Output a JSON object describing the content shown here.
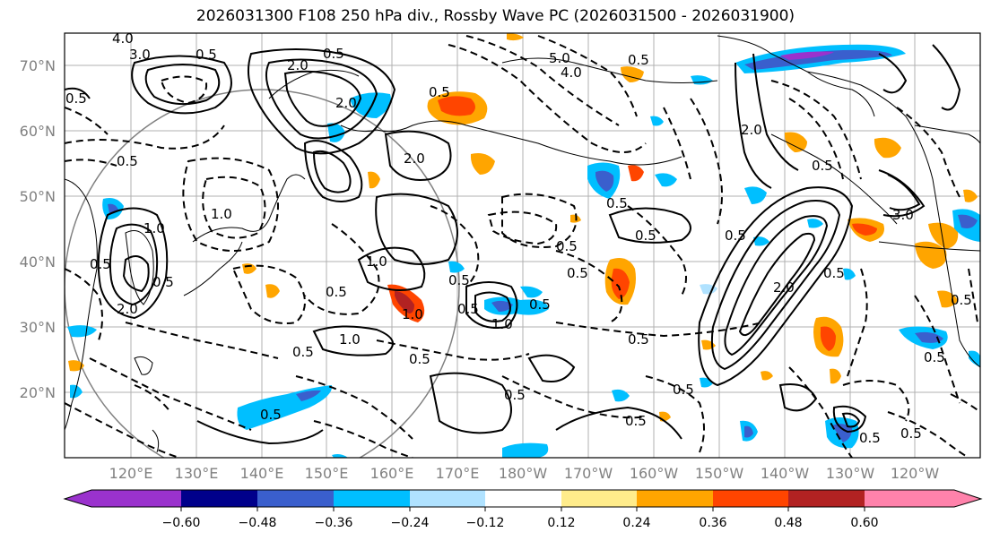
{
  "title": "2026031300 F108 250 hPa div., Rossby Wave PC (2026031500 - 2026031900)",
  "lat_labels": [
    "70°N",
    "60°N",
    "50°N",
    "40°N",
    "30°N",
    "20°N"
  ],
  "lon_labels": [
    "120°E",
    "130°E",
    "140°E",
    "150°E",
    "160°E",
    "170°E",
    "180°W",
    "170°W",
    "160°W",
    "150°W",
    "140°W",
    "130°W",
    "120°W"
  ],
  "colorbar": {
    "colors": [
      "#9a32cd",
      "#00008b",
      "#3a5fcd",
      "#00bfff",
      "#b0e2ff",
      "#ffffff",
      "#ffec8b",
      "#ffa500",
      "#ff4500",
      "#b22222",
      "#ff82ab"
    ],
    "ticks": [
      "−0.60",
      "−0.48",
      "−0.36",
      "−0.24",
      "−0.12",
      "0.12",
      "0.24",
      "0.36",
      "0.48",
      "0.60"
    ]
  },
  "contour_labels": [
    "4.0",
    "3.0",
    "2.0",
    "0.5",
    "0.5",
    "0.5",
    "1.0",
    "0.5",
    "2.0",
    "0.5",
    "0.5",
    "1.0",
    "1.0",
    "0.5",
    "1.0",
    "0.5",
    "2.0",
    "0.5",
    "1.0",
    "0.5",
    "0.5",
    "0.5",
    "0.5",
    "1.0",
    "0.5",
    "0.5",
    "0.5",
    "0.5",
    "0.5",
    "0.5",
    "2.0",
    "2.0",
    "0.5",
    "0.5",
    "0.5",
    "0.5",
    "3.0",
    "0.5",
    "0.5",
    "2.0",
    "0.5",
    "5.0",
    "4.0",
    "0.5",
    "0.5",
    "0.5",
    "0.5"
  ]
}
